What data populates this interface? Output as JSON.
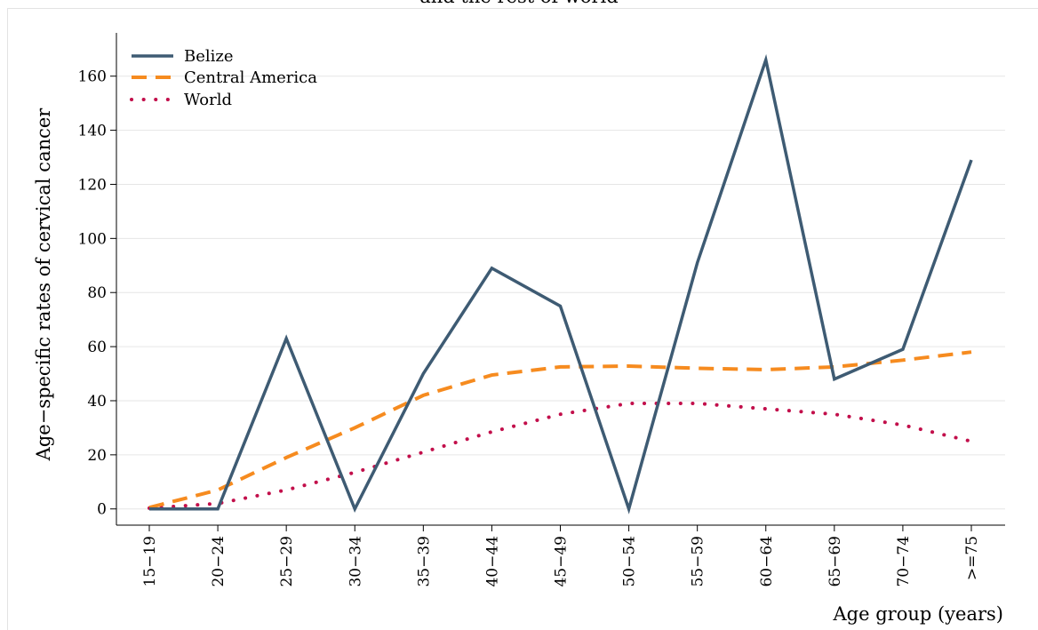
{
  "chart_data": {
    "type": "line",
    "title": "and the rest of world",
    "xlabel": "Age group (years)",
    "ylabel": "Age−specific rates of cervical cancer",
    "categories": [
      "15−19",
      "20−24",
      "25−29",
      "30−34",
      "35−39",
      "40−44",
      "45−49",
      "50−54",
      "55−59",
      "60−64",
      "65−69",
      "70−74",
      ">=75"
    ],
    "yticks": [
      0,
      20,
      40,
      60,
      80,
      100,
      120,
      140,
      160
    ],
    "ylim": [
      -6,
      176
    ],
    "grid": true,
    "legend_position": "top-left",
    "series": [
      {
        "name": "Belize",
        "style": "solid",
        "color": "#3e5b73",
        "values": [
          0,
          0,
          63,
          0,
          50,
          89,
          75,
          0,
          91,
          166,
          48,
          59,
          129
        ]
      },
      {
        "name": "Central America",
        "style": "dashed",
        "color": "#f68b1f",
        "values": [
          0.5,
          7,
          19,
          30,
          42,
          49.5,
          52.5,
          52.8,
          52,
          51.5,
          52.5,
          55,
          58
        ]
      },
      {
        "name": "World",
        "style": "dotted",
        "color": "#c20f4b",
        "values": [
          0.3,
          2,
          7,
          13.5,
          21,
          28.5,
          35,
          39,
          39,
          37,
          35,
          31,
          25
        ]
      }
    ]
  }
}
